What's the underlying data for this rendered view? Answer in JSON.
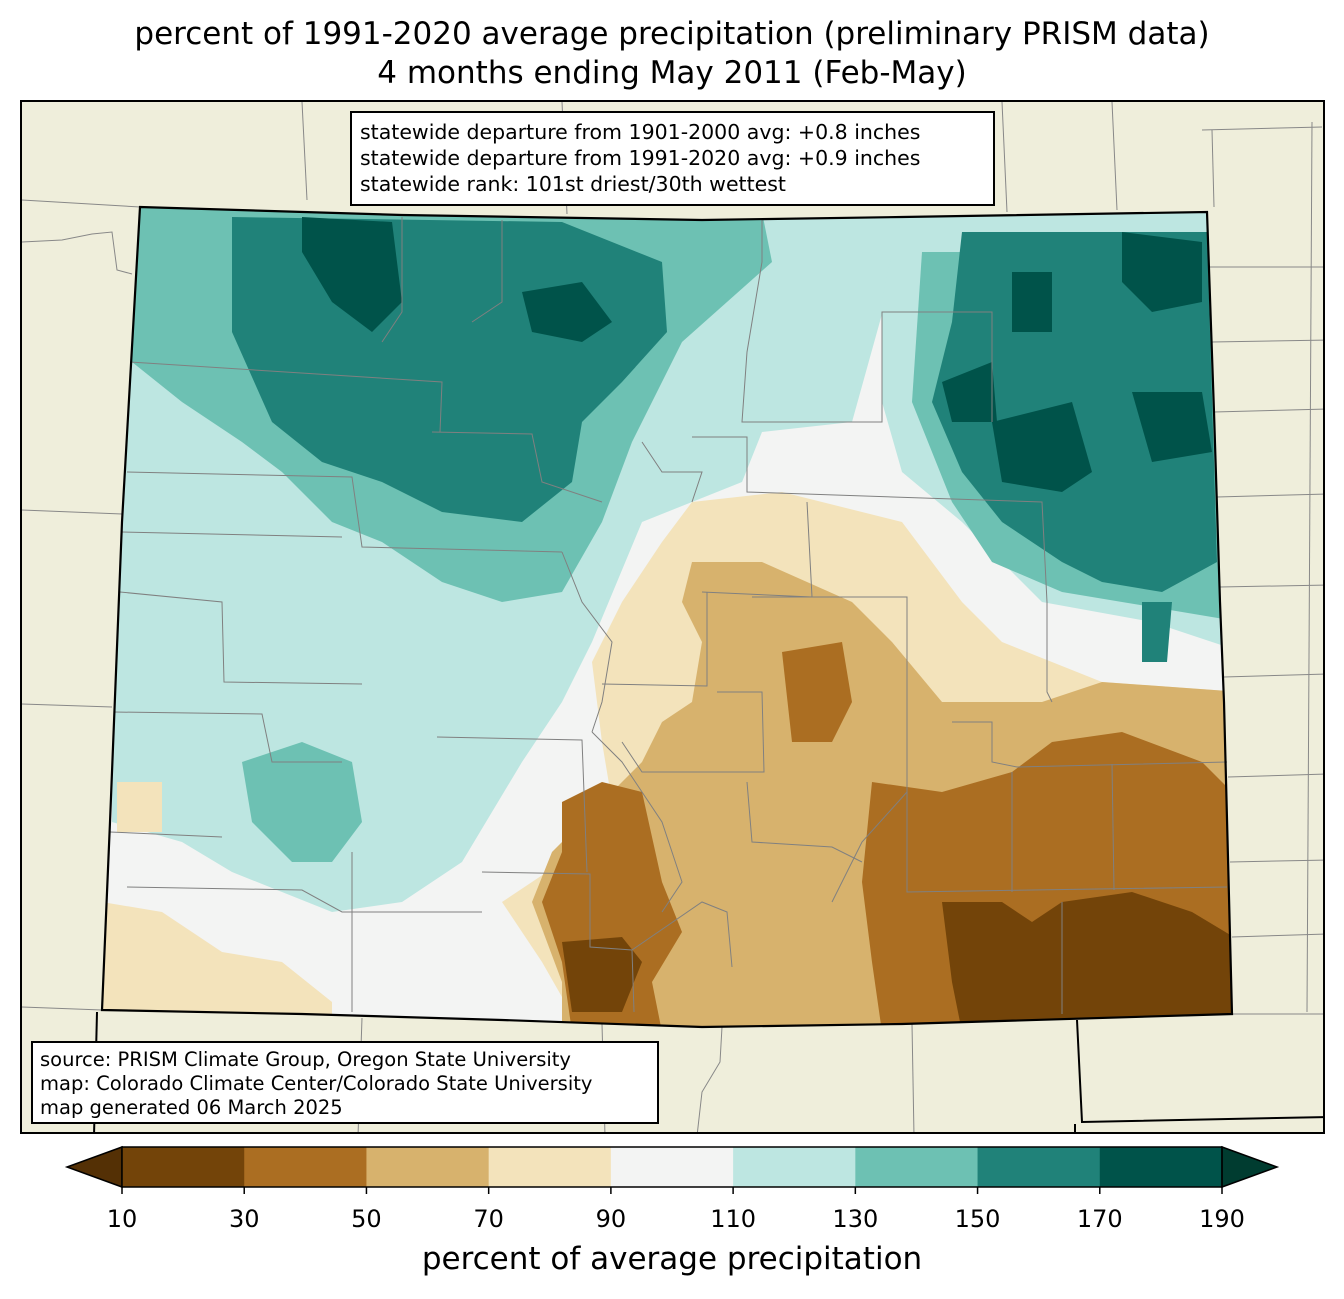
{
  "title": {
    "line1": "percent of 1991-2020 average precipitation (preliminary PRISM data)",
    "line2": "4 months ending May 2011 (Feb-May)"
  },
  "stats": {
    "line1": "statewide departure from 1901-2000 avg: +0.8 inches",
    "line2": "statewide departure from 1991-2020 avg: +0.9 inches",
    "line3": "statewide rank: 101st driest/30th wettest"
  },
  "source": {
    "line1": "source: PRISM Climate Group, Oregon State University",
    "line2": "map: Colorado Climate Center/Colorado State University",
    "line3": "map generated 06 March 2025"
  },
  "colorbar": {
    "label": "percent of average precipitation",
    "ticks": [
      "10",
      "30",
      "50",
      "70",
      "90",
      "110",
      "130",
      "150",
      "170",
      "190"
    ],
    "colors": [
      "#543005",
      "#734409",
      "#ab6e22",
      "#d7b26d",
      "#f3e3bb",
      "#f3f4f3",
      "#bde6e1",
      "#6dc1b3",
      "#208279",
      "#00534a",
      "#003c30"
    ]
  },
  "map": {
    "region": "Colorado",
    "background_color": "#efeedb",
    "county_line_color": "#808080",
    "border_color": "#000000"
  }
}
